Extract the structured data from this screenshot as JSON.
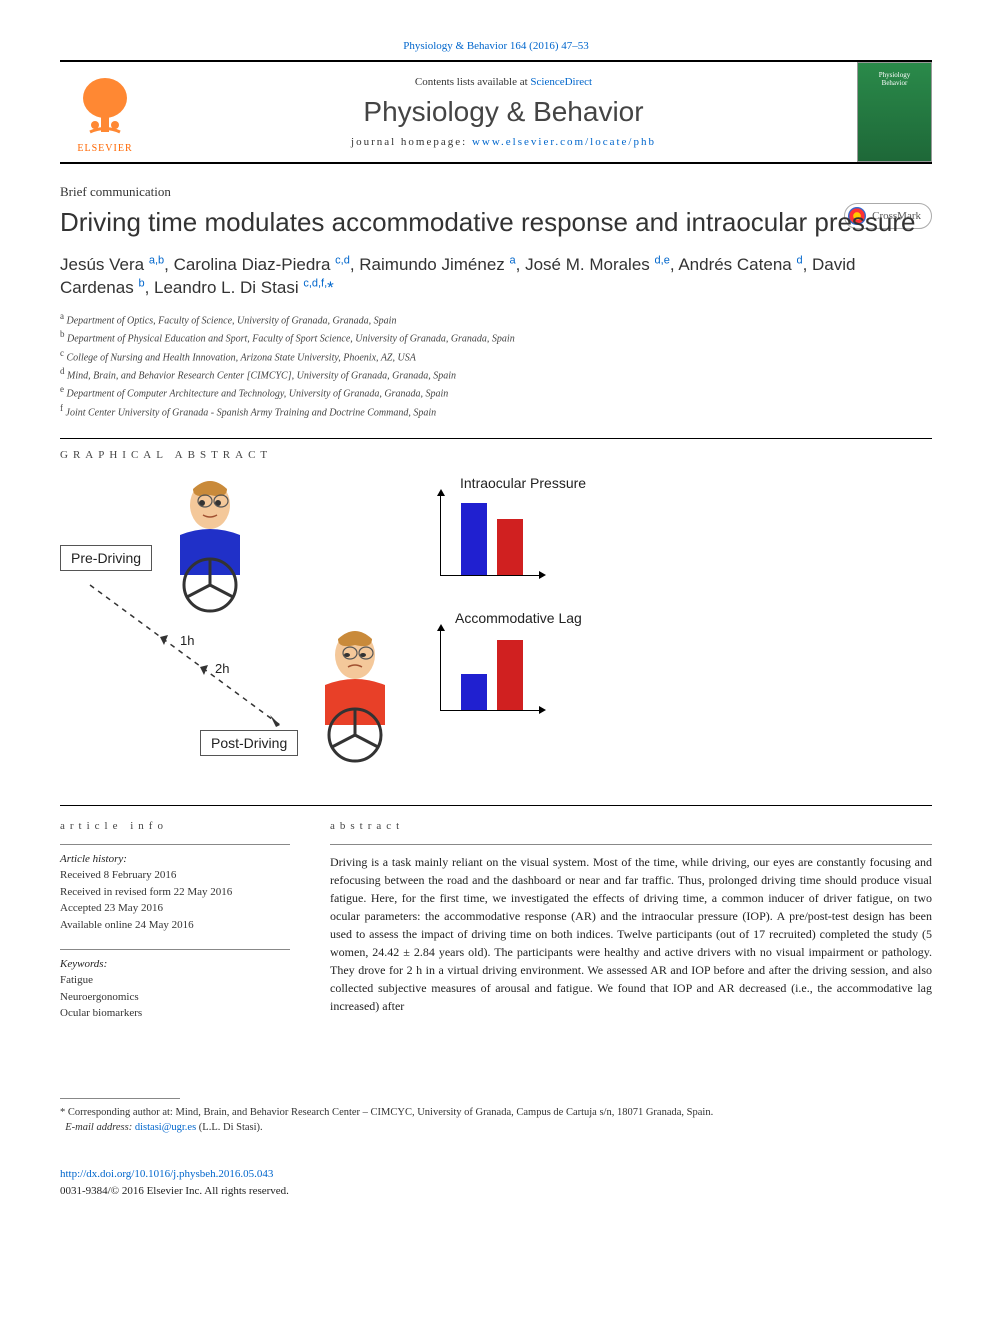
{
  "top_citation": "Physiology & Behavior 164 (2016) 47–53",
  "header": {
    "contents_prefix": "Contents lists available at ",
    "contents_link": "ScienceDirect",
    "journal_name": "Physiology & Behavior",
    "homepage_prefix": "journal homepage: ",
    "homepage_url": "www.elsevier.com/locate/phb",
    "publisher": "ELSEVIER",
    "cover_line1": "Physiology",
    "cover_line2": "Behavior"
  },
  "crossmark": "CrossMark",
  "article_type": "Brief communication",
  "title": "Driving time modulates accommodative response and intraocular pressure",
  "authors_html": "Jesús Vera <sup>a,b</sup>, Carolina Diaz-Piedra <sup>c,d</sup>, Raimundo Jiménez <sup>a</sup>, José M. Morales <sup>d,e</sup>, Andrés Catena <sup>d</sup>, David Cardenas <sup>b</sup>, Leandro L. Di Stasi <sup>c,d,f,</sup><span class='corr'>*</span>",
  "affiliations": [
    {
      "key": "a",
      "text": "Department of Optics, Faculty of Science, University of Granada, Granada, Spain"
    },
    {
      "key": "b",
      "text": "Department of Physical Education and Sport, Faculty of Sport Science, University of Granada, Granada, Spain"
    },
    {
      "key": "c",
      "text": "College of Nursing and Health Innovation, Arizona State University, Phoenix, AZ, USA"
    },
    {
      "key": "d",
      "text": "Mind, Brain, and Behavior Research Center [CIMCYC], University of Granada, Granada, Spain"
    },
    {
      "key": "e",
      "text": "Department of Computer Architecture and Technology, University of Granada, Granada, Spain"
    },
    {
      "key": "f",
      "text": "Joint Center University of Granada - Spanish Army Training and Doctrine Command, Spain"
    }
  ],
  "ga": {
    "heading": "graphical abstract",
    "pre_label": "Pre-Driving",
    "post_label": "Post-Driving",
    "time1": "1h",
    "time2": "2h",
    "chart1_title": "Intraocular Pressure",
    "chart2_title": "Accommodative Lag",
    "colors": {
      "pre": "#2020d0",
      "post": "#d02020",
      "shirt_pre": "#2030c8",
      "shirt_post": "#e84028",
      "skin": "#f4c89a",
      "hair": "#c98a3a"
    },
    "chart1": {
      "pre_height": 72,
      "post_height": 56
    },
    "chart2": {
      "pre_height": 36,
      "post_height": 70
    }
  },
  "info": {
    "heading": "article info",
    "history_label": "Article history:",
    "history": [
      "Received 8 February 2016",
      "Received in revised form 22 May 2016",
      "Accepted 23 May 2016",
      "Available online 24 May 2016"
    ],
    "keywords_label": "Keywords:",
    "keywords": [
      "Fatigue",
      "Neuroergonomics",
      "Ocular biomarkers"
    ]
  },
  "abstract": {
    "heading": "abstract",
    "text": "Driving is a task mainly reliant on the visual system. Most of the time, while driving, our eyes are constantly focusing and refocusing between the road and the dashboard or near and far traffic. Thus, prolonged driving time should produce visual fatigue. Here, for the first time, we investigated the effects of driving time, a common inducer of driver fatigue, on two ocular parameters: the accommodative response (AR) and the intraocular pressure (IOP). A pre/post-test design has been used to assess the impact of driving time on both indices. Twelve participants (out of 17 recruited) completed the study (5 women, 24.42 ± 2.84 years old). The participants were healthy and active drivers with no visual impairment or pathology. They drove for 2 h in a virtual driving environment. We assessed AR and IOP before and after the driving session, and also collected subjective measures of arousal and fatigue. We found that IOP and AR decreased (i.e., the accommodative lag increased) after"
  },
  "footnote": {
    "corr_text": "Corresponding author at: Mind, Brain, and Behavior Research Center – CIMCYC, University of Granada, Campus de Cartuja s/n, 18071 Granada, Spain.",
    "email_label": "E-mail address: ",
    "email": "distasi@ugr.es",
    "email_suffix": " (L.L. Di Stasi)."
  },
  "doi": {
    "url": "http://dx.doi.org/10.1016/j.physbeh.2016.05.043",
    "copyright": "0031-9384/© 2016 Elsevier Inc. All rights reserved."
  }
}
